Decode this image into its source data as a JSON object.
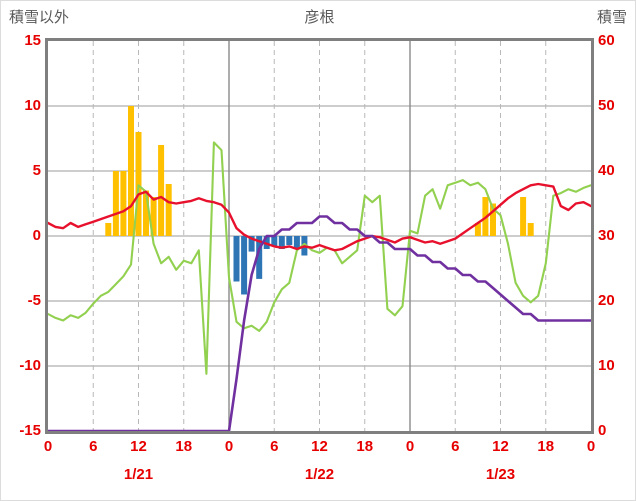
{
  "colors": {
    "axis_text": "#E60000",
    "title_text": "#595959",
    "frame": "#7F7F7F",
    "gridline": "#9B9B9B",
    "gridline_dashed": "#B8B8B8",
    "day_boundary": "#8A8A8A"
  },
  "chart_data": {
    "type": "line",
    "title": "彦根",
    "left_axis": {
      "label": "積雪以外",
      "min": -15,
      "max": 15,
      "ticks": [
        15,
        10,
        5,
        0,
        -5,
        -10,
        -15
      ]
    },
    "right_axis": {
      "label": "積雪",
      "min": 0,
      "max": 60,
      "ticks": [
        60,
        50,
        40,
        30,
        20,
        10,
        0
      ]
    },
    "x_axis": {
      "hours_total": 72,
      "tick_interval": 6,
      "tick_labels": [
        "0",
        "6",
        "12",
        "18",
        "0",
        "6",
        "12",
        "18",
        "0",
        "6",
        "12",
        "18",
        "0"
      ],
      "date_labels": [
        "1/21",
        "1/22",
        "1/23"
      ],
      "grid": "dashed-6h-solid-24h"
    },
    "series": [
      {
        "name": "orange-bars",
        "type": "bar",
        "axis": "left",
        "color": "#FFC000",
        "points": [
          [
            8,
            1.0
          ],
          [
            9,
            5.0
          ],
          [
            10,
            5.0
          ],
          [
            11,
            10.0
          ],
          [
            12,
            8.0
          ],
          [
            13,
            3.5
          ],
          [
            14,
            3.0
          ],
          [
            15,
            7.0
          ],
          [
            16,
            4.0
          ],
          [
            57,
            1.0
          ],
          [
            58,
            3.0
          ],
          [
            59,
            2.5
          ],
          [
            63,
            3.0
          ],
          [
            64,
            1.0
          ]
        ]
      },
      {
        "name": "blue-bars",
        "type": "bar",
        "axis": "left",
        "color": "#2E75B6",
        "points": [
          [
            25,
            -3.5
          ],
          [
            26,
            -4.5
          ],
          [
            27,
            -1.2
          ],
          [
            28,
            -3.3
          ],
          [
            29,
            -1.0
          ],
          [
            30,
            -0.8
          ],
          [
            31,
            -1.0
          ],
          [
            32,
            -0.7
          ],
          [
            33,
            -1.0
          ],
          [
            34,
            -1.5
          ]
        ]
      },
      {
        "name": "green-line",
        "type": "line",
        "axis": "left",
        "color": "#92D050",
        "values": [
          -6.0,
          -6.3,
          -6.5,
          -6.1,
          -6.3,
          -5.9,
          -5.2,
          -4.6,
          -4.3,
          -3.7,
          -3.1,
          -2.2,
          3.9,
          3.4,
          -0.6,
          -2.1,
          -1.6,
          -2.6,
          -1.9,
          -2.1,
          -1.1,
          -10.6,
          7.2,
          6.6,
          -3.2,
          -6.6,
          -7.1,
          -6.9,
          -7.3,
          -6.6,
          -5.1,
          -4.1,
          -3.6,
          -1.1,
          -0.6,
          -1.1,
          -1.3,
          -0.9,
          -1.1,
          -2.1,
          -1.6,
          -1.1,
          3.1,
          2.6,
          3.1,
          -5.6,
          -6.1,
          -5.4,
          0.4,
          0.2,
          3.1,
          3.6,
          2.1,
          3.9,
          4.1,
          4.3,
          3.9,
          4.1,
          3.6,
          2.1,
          1.6,
          -0.6,
          -3.6,
          -4.6,
          -5.1,
          -4.6,
          -2.1,
          3.1,
          3.3,
          3.6,
          3.4,
          3.7,
          3.9
        ]
      },
      {
        "name": "red-line",
        "type": "line",
        "axis": "left",
        "color": "#E8112D",
        "values": [
          1.0,
          0.7,
          0.6,
          1.0,
          0.7,
          0.9,
          1.1,
          1.3,
          1.5,
          1.7,
          1.9,
          2.3,
          3.2,
          3.4,
          2.8,
          3.0,
          2.6,
          2.5,
          2.6,
          2.7,
          2.9,
          2.7,
          2.6,
          2.4,
          1.8,
          0.6,
          0.1,
          -0.2,
          -0.4,
          -0.6,
          -0.8,
          -0.9,
          -0.8,
          -1.0,
          -0.8,
          -0.9,
          -0.7,
          -0.9,
          -1.1,
          -1.0,
          -0.7,
          -0.4,
          -0.2,
          0.0,
          -0.1,
          -0.3,
          -0.5,
          -0.2,
          -0.1,
          -0.3,
          -0.5,
          -0.4,
          -0.6,
          -0.4,
          -0.2,
          0.2,
          0.6,
          1.0,
          1.4,
          1.9,
          2.4,
          2.9,
          3.3,
          3.6,
          3.9,
          4.0,
          3.9,
          3.8,
          2.3,
          2.0,
          2.5,
          2.6,
          2.3
        ]
      },
      {
        "name": "purple-line",
        "type": "line",
        "axis": "right",
        "color": "#7030A0",
        "values": [
          0,
          0,
          0,
          0,
          0,
          0,
          0,
          0,
          0,
          0,
          0,
          0,
          0,
          0,
          0,
          0,
          0,
          0,
          0,
          0,
          0,
          0,
          0,
          0,
          0,
          8,
          17,
          24,
          28,
          30,
          30,
          31,
          31,
          32,
          32,
          32,
          33,
          33,
          32,
          32,
          31,
          31,
          30,
          30,
          29,
          29,
          28,
          28,
          28,
          27,
          27,
          26,
          26,
          25,
          25,
          24,
          24,
          23,
          23,
          22,
          21,
          20,
          19,
          18,
          18,
          17,
          17,
          17,
          17,
          17,
          17,
          17,
          17
        ]
      }
    ]
  }
}
